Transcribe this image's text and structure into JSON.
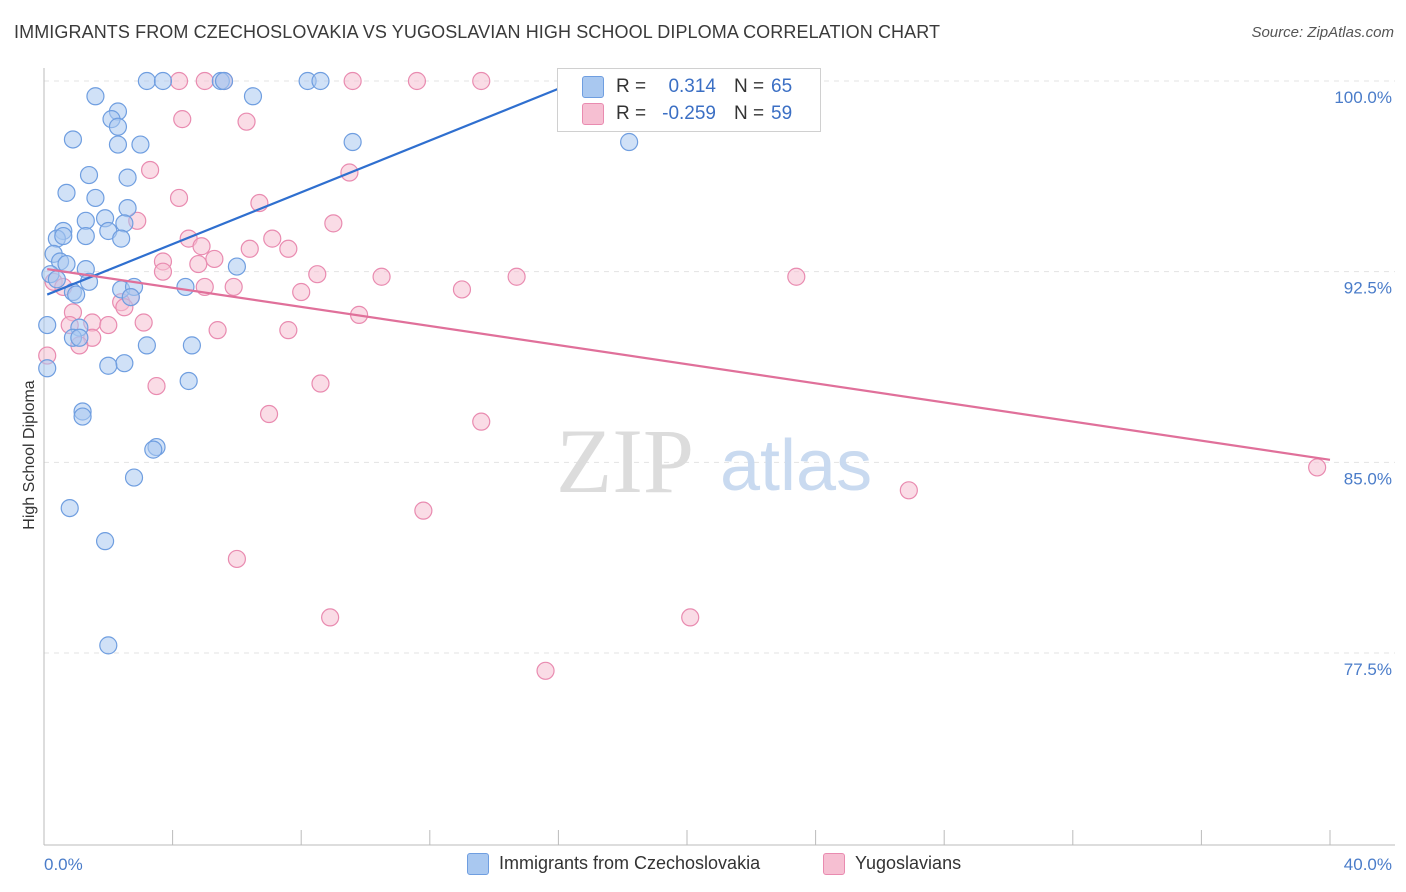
{
  "title": "IMMIGRANTS FROM CZECHOSLOVAKIA VS YUGOSLAVIAN HIGH SCHOOL DIPLOMA CORRELATION CHART",
  "source": "Source: ZipAtlas.com",
  "watermark": {
    "zip": "ZIP",
    "atlas": "atlas"
  },
  "colors": {
    "blue_fill": "#a9c8f0",
    "blue_stroke": "#6f9ee0",
    "blue_line": "#2f6fcf",
    "pink_fill": "#f6bfd2",
    "pink_stroke": "#e98bb0",
    "pink_line": "#e0709a",
    "axis_text": "#4a7cc9",
    "grid": "#e3e3e3"
  },
  "legend": {
    "rows": [
      {
        "r_label": "R =",
        "r_value": "0.314",
        "n_label": "N =",
        "n_value": "65"
      },
      {
        "r_label": "R =",
        "r_value": "-0.259",
        "n_label": "N =",
        "n_value": "59"
      }
    ]
  },
  "bottom_legend": {
    "series1": "Immigrants from Czechoslovakia",
    "series2": "Yugoslavians"
  },
  "chart_data": {
    "type": "scatter",
    "title": "IMMIGRANTS FROM CZECHOSLOVAKIA VS YUGOSLAVIAN HIGH SCHOOL DIPLOMA CORRELATION CHART",
    "xlabel": "",
    "ylabel": "High School Diploma",
    "xlim": [
      0,
      40
    ],
    "ylim": [
      71.0,
      101.0
    ],
    "x_tick_labels": [
      "0.0%",
      "40.0%"
    ],
    "y_ticks": [
      77.5,
      85.0,
      92.5,
      100.0
    ],
    "y_tick_labels": [
      "77.5%",
      "85.0%",
      "92.5%",
      "100.0%"
    ],
    "grid": true,
    "series": [
      {
        "name": "Immigrants from Czechoslovakia",
        "R": 0.314,
        "N": 65,
        "trend": {
          "x": [
            0.1,
            16.6
          ],
          "y": [
            91.6,
            100.0
          ]
        },
        "points": [
          [
            3.2,
            100.0
          ],
          [
            3.7,
            100.0
          ],
          [
            5.5,
            100.0
          ],
          [
            5.6,
            100.0
          ],
          [
            8.2,
            100.0
          ],
          [
            8.6,
            100.0
          ],
          [
            1.6,
            99.4
          ],
          [
            6.5,
            99.4
          ],
          [
            2.3,
            98.8
          ],
          [
            2.1,
            98.5
          ],
          [
            2.3,
            98.2
          ],
          [
            0.9,
            97.7
          ],
          [
            2.3,
            97.5
          ],
          [
            3.0,
            97.5
          ],
          [
            9.6,
            97.6
          ],
          [
            18.2,
            97.6
          ],
          [
            1.4,
            96.3
          ],
          [
            2.6,
            96.2
          ],
          [
            0.7,
            95.6
          ],
          [
            1.6,
            95.4
          ],
          [
            2.6,
            95.0
          ],
          [
            1.3,
            94.5
          ],
          [
            1.9,
            94.6
          ],
          [
            2.5,
            94.4
          ],
          [
            0.6,
            94.1
          ],
          [
            2.0,
            94.1
          ],
          [
            0.4,
            93.8
          ],
          [
            0.6,
            93.9
          ],
          [
            1.3,
            93.9
          ],
          [
            2.4,
            93.8
          ],
          [
            0.3,
            93.2
          ],
          [
            0.5,
            92.9
          ],
          [
            0.7,
            92.8
          ],
          [
            1.3,
            92.6
          ],
          [
            6.0,
            92.7
          ],
          [
            0.2,
            92.4
          ],
          [
            0.4,
            92.2
          ],
          [
            1.4,
            92.1
          ],
          [
            2.4,
            91.8
          ],
          [
            2.8,
            91.9
          ],
          [
            4.4,
            91.9
          ],
          [
            0.9,
            91.7
          ],
          [
            1.0,
            91.6
          ],
          [
            2.7,
            91.5
          ],
          [
            0.1,
            90.4
          ],
          [
            1.1,
            90.3
          ],
          [
            0.9,
            89.9
          ],
          [
            1.1,
            89.9
          ],
          [
            3.2,
            89.6
          ],
          [
            4.6,
            89.6
          ],
          [
            2.5,
            88.9
          ],
          [
            2.0,
            88.8
          ],
          [
            0.1,
            88.7
          ],
          [
            4.5,
            88.2
          ],
          [
            1.2,
            87.0
          ],
          [
            1.2,
            86.8
          ],
          [
            3.5,
            85.6
          ],
          [
            3.4,
            85.5
          ],
          [
            2.8,
            84.4
          ],
          [
            0.8,
            83.2
          ],
          [
            1.9,
            81.9
          ],
          [
            2.0,
            77.8
          ]
        ]
      },
      {
        "name": "Yugoslavians",
        "R": -0.259,
        "N": 59,
        "trend": {
          "x": [
            0.1,
            40.0
          ],
          "y": [
            92.6,
            85.1
          ]
        },
        "points": [
          [
            4.2,
            100.0
          ],
          [
            5.0,
            100.0
          ],
          [
            5.6,
            100.0
          ],
          [
            9.6,
            100.0
          ],
          [
            11.6,
            100.0
          ],
          [
            13.6,
            100.0
          ],
          [
            4.3,
            98.5
          ],
          [
            6.3,
            98.4
          ],
          [
            3.3,
            96.5
          ],
          [
            9.5,
            96.4
          ],
          [
            4.2,
            95.4
          ],
          [
            6.7,
            95.2
          ],
          [
            2.9,
            94.5
          ],
          [
            9.0,
            94.4
          ],
          [
            4.5,
            93.8
          ],
          [
            7.1,
            93.8
          ],
          [
            4.9,
            93.5
          ],
          [
            6.4,
            93.4
          ],
          [
            7.6,
            93.4
          ],
          [
            3.7,
            92.9
          ],
          [
            5.3,
            93.0
          ],
          [
            4.8,
            92.8
          ],
          [
            3.7,
            92.5
          ],
          [
            8.5,
            92.4
          ],
          [
            10.5,
            92.3
          ],
          [
            14.7,
            92.3
          ],
          [
            23.4,
            92.3
          ],
          [
            0.3,
            92.1
          ],
          [
            0.6,
            91.9
          ],
          [
            5.0,
            91.9
          ],
          [
            5.9,
            91.9
          ],
          [
            13.0,
            91.8
          ],
          [
            8.0,
            91.7
          ],
          [
            2.7,
            91.5
          ],
          [
            2.4,
            91.3
          ],
          [
            2.5,
            91.1
          ],
          [
            0.9,
            90.9
          ],
          [
            9.8,
            90.8
          ],
          [
            3.1,
            90.5
          ],
          [
            0.8,
            90.4
          ],
          [
            1.5,
            90.5
          ],
          [
            2.0,
            90.4
          ],
          [
            5.4,
            90.2
          ],
          [
            7.6,
            90.2
          ],
          [
            1.5,
            89.9
          ],
          [
            1.1,
            89.6
          ],
          [
            0.1,
            89.2
          ],
          [
            8.6,
            88.1
          ],
          [
            3.5,
            88.0
          ],
          [
            7.0,
            86.9
          ],
          [
            13.6,
            86.6
          ],
          [
            39.6,
            84.8
          ],
          [
            26.9,
            83.9
          ],
          [
            11.8,
            83.1
          ],
          [
            6.0,
            81.2
          ],
          [
            8.9,
            78.9
          ],
          [
            20.1,
            78.9
          ],
          [
            15.6,
            76.8
          ]
        ]
      }
    ]
  }
}
